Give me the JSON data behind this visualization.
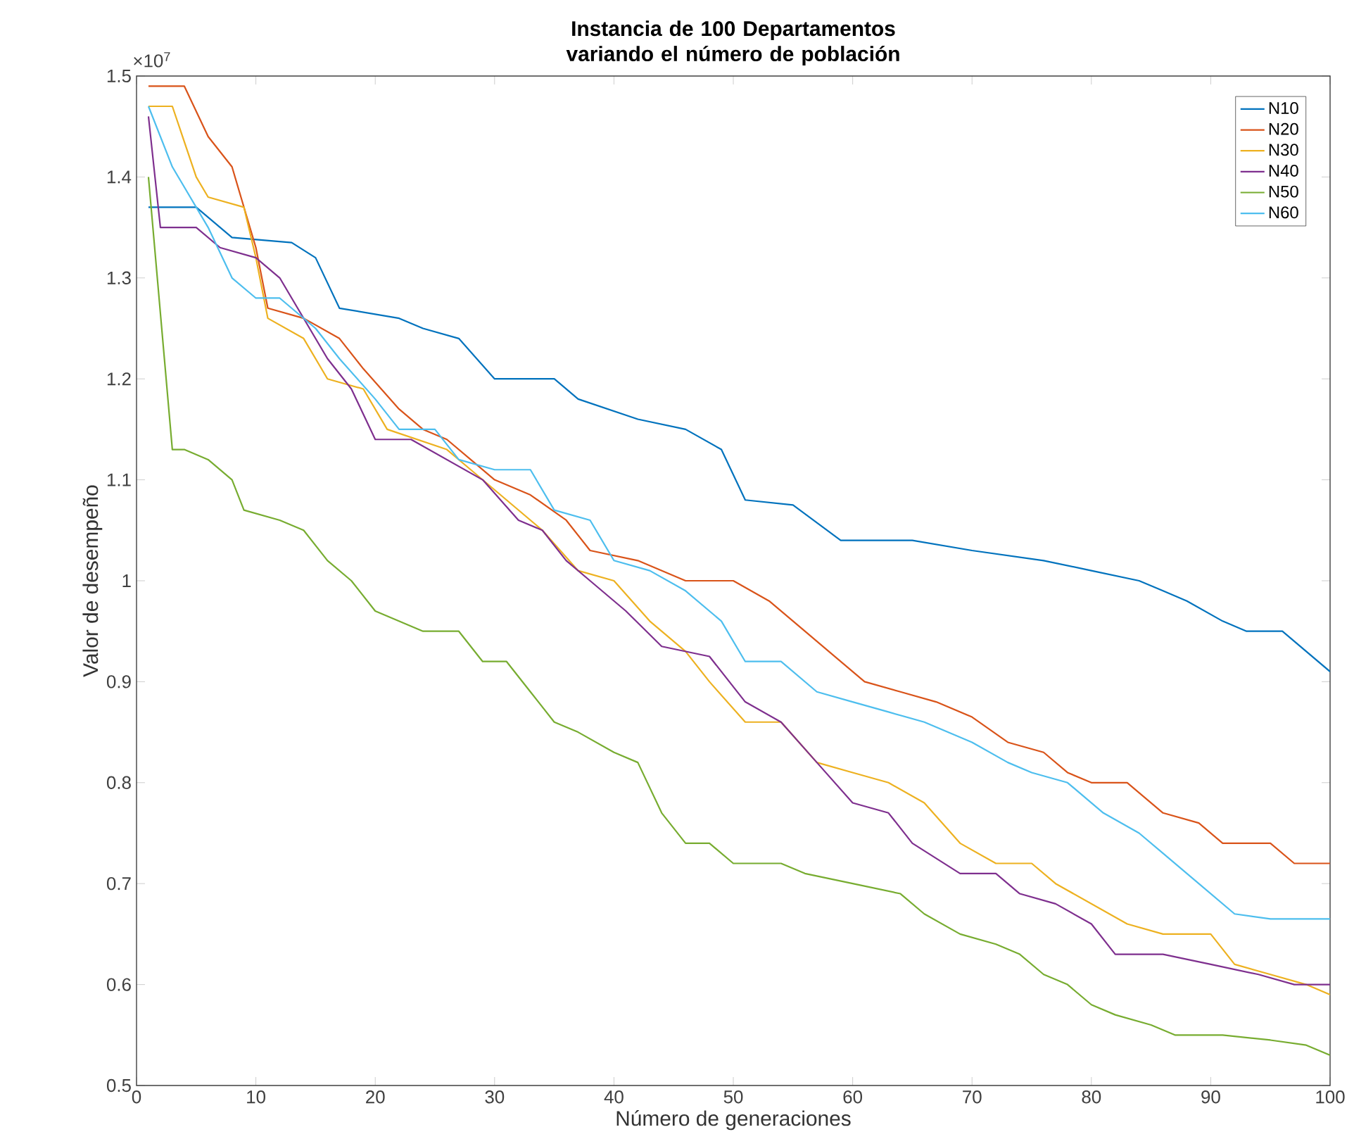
{
  "chart_data": {
    "type": "line",
    "title": "Instancia de 100 Departamentos variando el número de población",
    "xlabel": "Número de generaciones",
    "ylabel": "Valor de desempeño",
    "annotations": [
      "×10$^{7}$"
    ],
    "xlim": [
      0,
      100
    ],
    "ylim": [
      0.5,
      1.5
    ],
    "xticks": [
      0,
      10,
      20,
      30,
      40,
      50,
      60,
      70,
      80,
      90,
      100
    ],
    "yticks": [
      0.5,
      0.6,
      0.7,
      0.8,
      0.9,
      1,
      1.1,
      1.2,
      1.3,
      1.4,
      1.5
    ],
    "legend": "top right",
    "series": [
      {
        "name": "N10",
        "color": "#0072bd",
        "x": [
          1,
          5,
          8,
          13,
          15,
          17,
          22,
          24,
          27,
          30,
          35,
          37,
          42,
          46,
          49,
          51,
          55,
          59,
          65,
          70,
          76,
          80,
          84,
          86,
          88,
          91,
          93,
          96,
          98,
          100
        ],
        "values": [
          1.37,
          1.37,
          1.34,
          1.335,
          1.32,
          1.27,
          1.26,
          1.25,
          1.24,
          1.2,
          1.2,
          1.18,
          1.16,
          1.15,
          1.13,
          1.08,
          1.075,
          1.04,
          1.04,
          1.03,
          1.02,
          1.01,
          1.0,
          0.99,
          0.98,
          0.96,
          0.95,
          0.95,
          0.93,
          0.91
        ]
      },
      {
        "name": "N20",
        "color": "#d95319",
        "x": [
          1,
          4,
          6,
          8,
          10,
          11,
          14,
          17,
          19,
          22,
          24,
          26,
          28,
          30,
          33,
          36,
          38,
          42,
          46,
          50,
          53,
          56,
          58,
          61,
          64,
          67,
          70,
          73,
          76,
          78,
          80,
          83,
          86,
          89,
          91,
          95,
          97,
          100
        ],
        "values": [
          1.49,
          1.49,
          1.44,
          1.41,
          1.33,
          1.27,
          1.26,
          1.24,
          1.21,
          1.17,
          1.15,
          1.14,
          1.12,
          1.1,
          1.085,
          1.06,
          1.03,
          1.02,
          1.0,
          1.0,
          0.98,
          0.95,
          0.93,
          0.9,
          0.89,
          0.88,
          0.865,
          0.84,
          0.83,
          0.81,
          0.8,
          0.8,
          0.77,
          0.76,
          0.74,
          0.74,
          0.72,
          0.72
        ]
      },
      {
        "name": "N30",
        "color": "#edb120",
        "x": [
          1,
          3,
          5,
          6,
          9,
          10,
          11,
          14,
          16,
          19,
          21,
          26,
          28,
          31,
          34,
          37,
          40,
          43,
          46,
          48,
          51,
          54,
          57,
          60,
          63,
          66,
          69,
          72,
          75,
          77,
          80,
          83,
          86,
          90,
          92,
          95,
          98,
          100
        ],
        "values": [
          1.47,
          1.47,
          1.4,
          1.38,
          1.37,
          1.32,
          1.26,
          1.24,
          1.2,
          1.19,
          1.15,
          1.13,
          1.11,
          1.08,
          1.05,
          1.01,
          1.0,
          0.96,
          0.93,
          0.9,
          0.86,
          0.86,
          0.82,
          0.81,
          0.8,
          0.78,
          0.74,
          0.72,
          0.72,
          0.7,
          0.68,
          0.66,
          0.65,
          0.65,
          0.62,
          0.61,
          0.6,
          0.59
        ]
      },
      {
        "name": "N40",
        "color": "#7e2f8e",
        "x": [
          1,
          2,
          5,
          7,
          10,
          12,
          14,
          16,
          18,
          20,
          23,
          26,
          29,
          32,
          34,
          36,
          38,
          41,
          44,
          48,
          51,
          54,
          57,
          60,
          63,
          65,
          69,
          72,
          74,
          77,
          80,
          82,
          86,
          90,
          94,
          97,
          100
        ],
        "values": [
          1.46,
          1.35,
          1.35,
          1.33,
          1.32,
          1.3,
          1.26,
          1.22,
          1.19,
          1.14,
          1.14,
          1.12,
          1.1,
          1.06,
          1.05,
          1.02,
          1.0,
          0.97,
          0.935,
          0.925,
          0.88,
          0.86,
          0.82,
          0.78,
          0.77,
          0.74,
          0.71,
          0.71,
          0.69,
          0.68,
          0.66,
          0.63,
          0.63,
          0.62,
          0.61,
          0.6,
          0.6
        ]
      },
      {
        "name": "N50",
        "color": "#77ac30",
        "x": [
          1,
          3,
          4,
          6,
          8,
          9,
          12,
          14,
          16,
          18,
          20,
          22,
          24,
          27,
          29,
          31,
          33,
          35,
          37,
          40,
          42,
          44,
          46,
          48,
          50,
          54,
          56,
          60,
          64,
          66,
          69,
          72,
          74,
          76,
          78,
          80,
          82,
          85,
          87,
          91,
          95,
          98,
          100
        ],
        "values": [
          1.4,
          1.13,
          1.13,
          1.12,
          1.1,
          1.07,
          1.06,
          1.05,
          1.02,
          1.0,
          0.97,
          0.96,
          0.95,
          0.95,
          0.92,
          0.92,
          0.89,
          0.86,
          0.85,
          0.83,
          0.82,
          0.77,
          0.74,
          0.74,
          0.72,
          0.72,
          0.71,
          0.7,
          0.69,
          0.67,
          0.65,
          0.64,
          0.63,
          0.61,
          0.6,
          0.58,
          0.57,
          0.56,
          0.55,
          0.55,
          0.545,
          0.54,
          0.53
        ]
      },
      {
        "name": "N60",
        "color": "#4dbeee",
        "x": [
          1,
          3,
          4,
          6,
          8,
          10,
          12,
          15,
          17,
          20,
          22,
          25,
          27,
          30,
          33,
          35,
          38,
          40,
          43,
          46,
          49,
          51,
          54,
          57,
          60,
          63,
          66,
          70,
          73,
          75,
          78,
          81,
          84,
          86,
          88,
          90,
          92,
          95,
          100
        ],
        "values": [
          1.47,
          1.41,
          1.39,
          1.35,
          1.3,
          1.28,
          1.28,
          1.25,
          1.22,
          1.18,
          1.15,
          1.15,
          1.12,
          1.11,
          1.11,
          1.07,
          1.06,
          1.02,
          1.01,
          0.99,
          0.96,
          0.92,
          0.92,
          0.89,
          0.88,
          0.87,
          0.86,
          0.84,
          0.82,
          0.81,
          0.8,
          0.77,
          0.75,
          0.73,
          0.71,
          0.69,
          0.67,
          0.665,
          0.665
        ]
      }
    ]
  }
}
